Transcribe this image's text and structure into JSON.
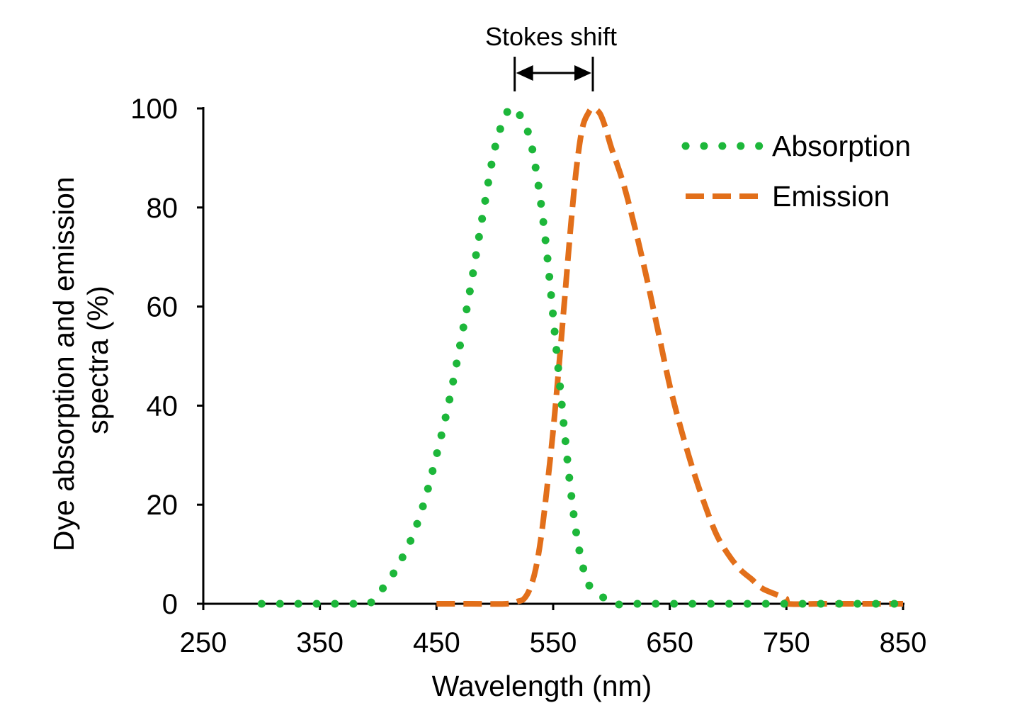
{
  "chart_data": {
    "type": "line",
    "title": "",
    "xlabel": "Wavelength (nm)",
    "ylabel_lines": [
      "Dye absorption and emission",
      "spectra (%)"
    ],
    "xlim": [
      250,
      850
    ],
    "ylim": [
      0,
      100
    ],
    "x_ticks": [
      250,
      350,
      450,
      550,
      650,
      750,
      850
    ],
    "y_ticks": [
      0,
      20,
      40,
      60,
      80,
      100
    ],
    "grid": false,
    "legend_position": "top-right",
    "annotation": {
      "label": "Stokes shift",
      "from_x": 517,
      "to_x": 584
    },
    "series": [
      {
        "name": "Absorption",
        "color": "#1db73a",
        "style": "dotted",
        "points": [
          [
            300,
            0
          ],
          [
            320,
            0
          ],
          [
            340,
            0
          ],
          [
            360,
            0
          ],
          [
            380,
            0
          ],
          [
            392,
            0
          ],
          [
            400,
            2
          ],
          [
            410,
            5
          ],
          [
            420,
            9
          ],
          [
            430,
            14
          ],
          [
            440,
            21
          ],
          [
            450,
            30
          ],
          [
            460,
            40
          ],
          [
            470,
            52
          ],
          [
            480,
            65
          ],
          [
            490,
            79
          ],
          [
            500,
            92
          ],
          [
            510,
            99
          ],
          [
            517,
            100
          ],
          [
            525,
            97
          ],
          [
            530,
            94
          ],
          [
            535,
            88
          ],
          [
            540,
            80
          ],
          [
            545,
            70
          ],
          [
            550,
            58
          ],
          [
            555,
            46
          ],
          [
            560,
            34
          ],
          [
            565,
            23
          ],
          [
            570,
            14
          ],
          [
            575,
            8
          ],
          [
            580,
            4
          ],
          [
            590,
            2
          ],
          [
            600,
            0
          ],
          [
            620,
            0
          ],
          [
            650,
            0
          ],
          [
            700,
            0
          ],
          [
            750,
            0
          ],
          [
            800,
            0
          ],
          [
            850,
            0
          ]
        ]
      },
      {
        "name": "Emission",
        "color": "#e26f1a",
        "style": "dashed",
        "points": [
          [
            450,
            0
          ],
          [
            480,
            0
          ],
          [
            510,
            0
          ],
          [
            520,
            0.5
          ],
          [
            525,
            1
          ],
          [
            530,
            3
          ],
          [
            535,
            7
          ],
          [
            540,
            14
          ],
          [
            545,
            24
          ],
          [
            550,
            35
          ],
          [
            555,
            48
          ],
          [
            560,
            62
          ],
          [
            565,
            76
          ],
          [
            570,
            88
          ],
          [
            575,
            96
          ],
          [
            580,
            99
          ],
          [
            584,
            100
          ],
          [
            590,
            99
          ],
          [
            595,
            96
          ],
          [
            600,
            92
          ],
          [
            610,
            85
          ],
          [
            620,
            76
          ],
          [
            630,
            66
          ],
          [
            640,
            55
          ],
          [
            650,
            44
          ],
          [
            660,
            35
          ],
          [
            670,
            27
          ],
          [
            680,
            20
          ],
          [
            690,
            14
          ],
          [
            700,
            10
          ],
          [
            710,
            7
          ],
          [
            720,
            5
          ],
          [
            730,
            3
          ],
          [
            750,
            1
          ],
          [
            751,
            0
          ],
          [
            780,
            0
          ],
          [
            810,
            0
          ],
          [
            850,
            0
          ]
        ]
      }
    ]
  }
}
